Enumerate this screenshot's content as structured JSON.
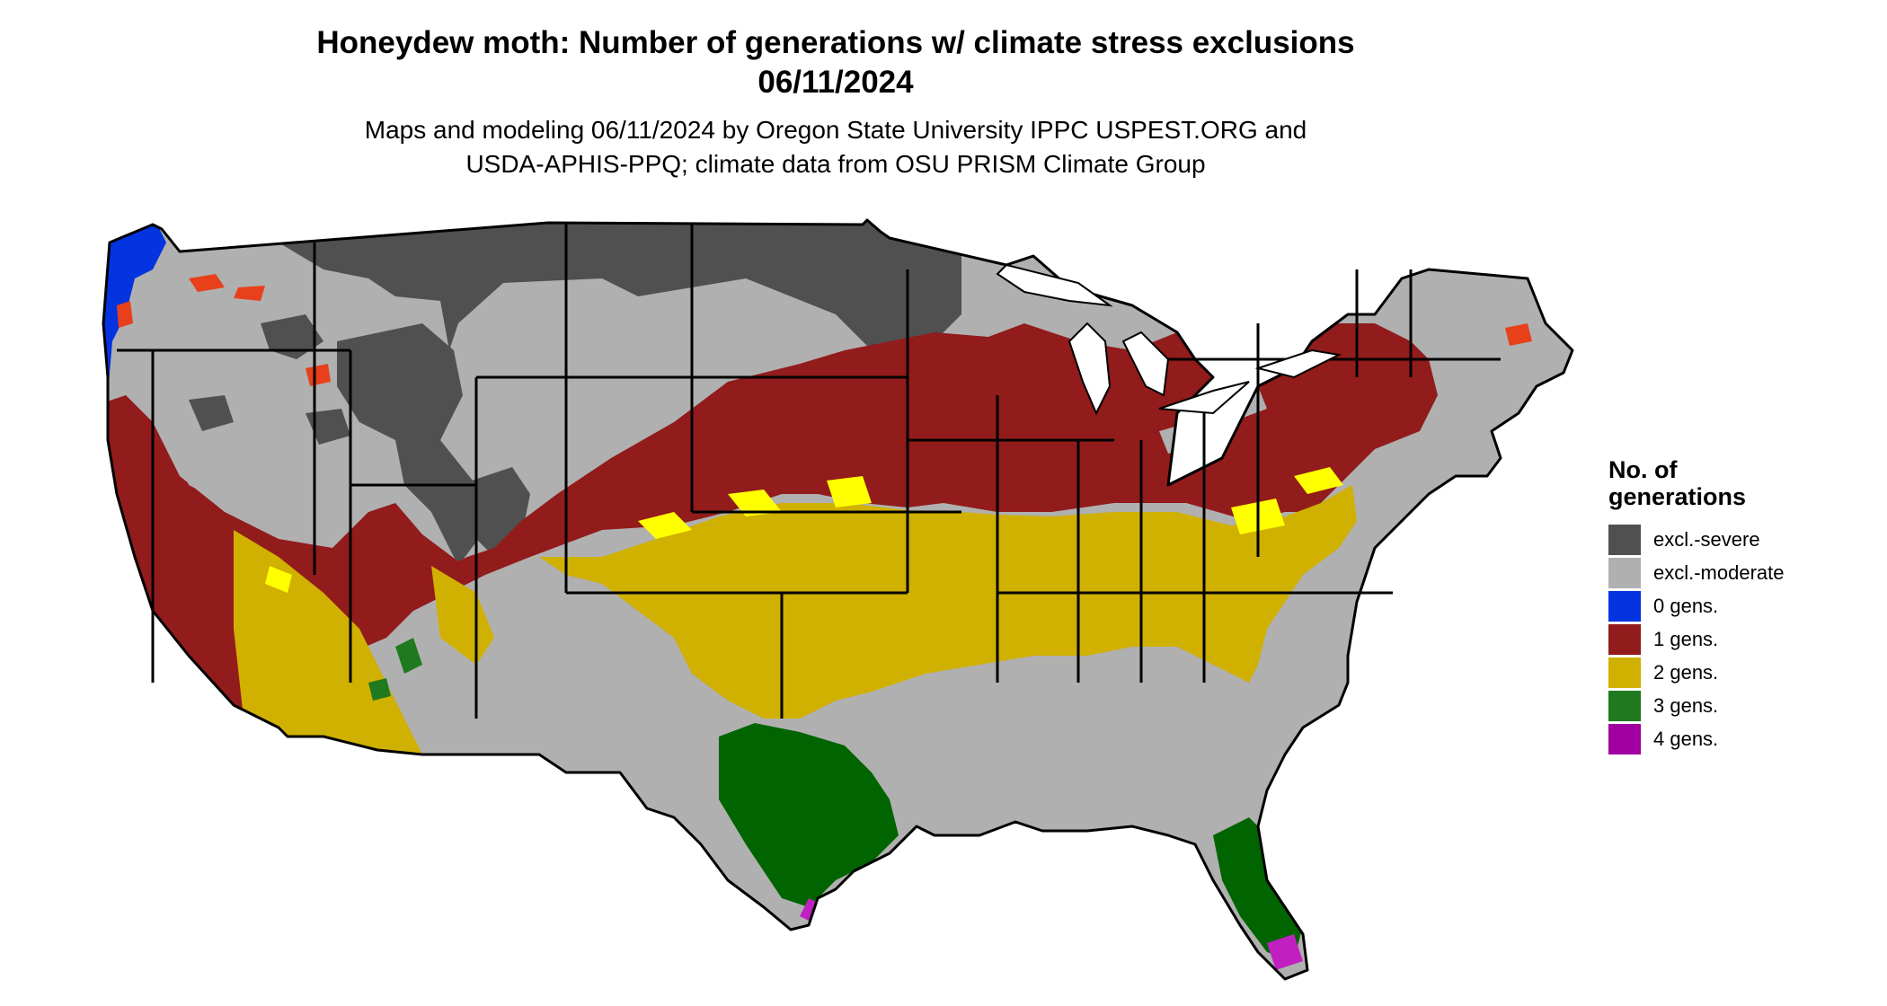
{
  "header": {
    "title_line1": "Honeydew moth: Number of generations w/ climate stress exclusions",
    "title_line2": "06/11/2024",
    "subtitle_line1": "Maps and modeling 06/11/2024 by Oregon State University IPPC USPEST.ORG and",
    "subtitle_line2": "USDA-APHIS-PPQ; climate data from OSU PRISM Climate Group"
  },
  "legend": {
    "title_line1": "No. of",
    "title_line2": "generations",
    "items": [
      {
        "label": "excl.-severe",
        "color": "#505050"
      },
      {
        "label": "excl.-moderate",
        "color": "#b0b0b0"
      },
      {
        "label": "0 gens.",
        "color": "#0433e0"
      },
      {
        "label": "1 gens.",
        "color": "#921b1b"
      },
      {
        "label": "2 gens.",
        "color": "#d0b000"
      },
      {
        "label": "3 gens.",
        "color": "#1f7a1f"
      },
      {
        "label": "4 gens.",
        "color": "#a000a0"
      }
    ]
  },
  "map": {
    "region": "Contiguous United States",
    "category_colors": {
      "excl_severe": "#505050",
      "excl_moderate": "#b0b0b0",
      "gen0": "#0433e0",
      "gen1": "#921b1b",
      "gen2": "#d0b000",
      "gen3": "#006400",
      "gen4": "#c020c0",
      "bright_yellow": "#ffff00",
      "orange_red": "#e8401a"
    }
  }
}
